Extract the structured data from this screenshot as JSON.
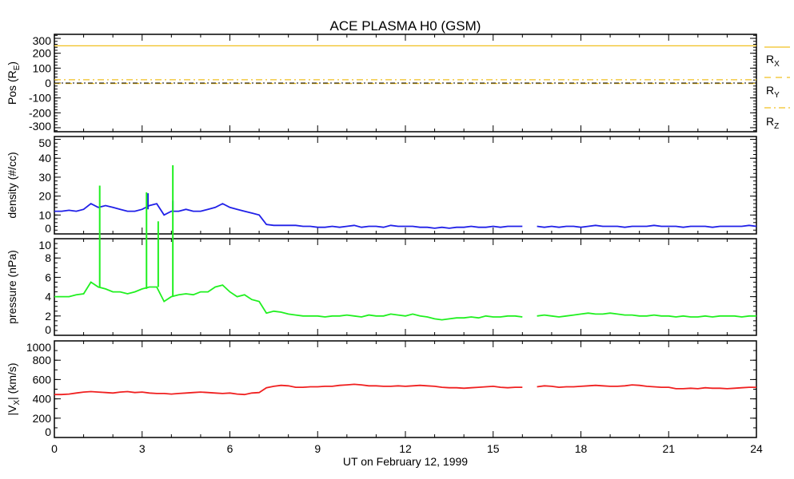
{
  "chart_data": {
    "type": "line",
    "title": "ACE PLASMA H0 (GSM)",
    "xlabel": "UT on February 12, 1999",
    "xlim": [
      0,
      24
    ],
    "xticks": [
      "0",
      "3",
      "6",
      "9",
      "12",
      "15",
      "18",
      "21",
      "24"
    ],
    "x_step_hours": 0.25,
    "panels": [
      {
        "id": "pos",
        "ylabel": {
          "main": "Pos (R",
          "sub": "E",
          "end": ")"
        },
        "ylim": [
          -327,
          327
        ],
        "yticks": [
          "-300",
          "-200",
          "-100",
          "0",
          "100",
          "200",
          "300"
        ],
        "ytick_values": [
          -300,
          -200,
          -100,
          0,
          100,
          200,
          300
        ],
        "minor_step": 20,
        "series": [
          {
            "name": "RX",
            "label_main": "R",
            "label_sub": "X",
            "color": "#f0c020",
            "style": "solid",
            "constant": 250
          },
          {
            "name": "RY",
            "label_main": "R",
            "label_sub": "Y",
            "color": "#f0c020",
            "style": "dashed",
            "constant": -3
          },
          {
            "name": "RZ",
            "label_main": "R",
            "label_sub": "Z",
            "color": "#f0c020",
            "style": "dashdot",
            "constant": 22
          }
        ]
      },
      {
        "id": "density",
        "ylabel": {
          "main": "density (#/cc)",
          "sub": "",
          "end": ""
        },
        "ylim": [
          0,
          51.5
        ],
        "yticks": [
          "0",
          "10",
          "20",
          "30",
          "40",
          "50"
        ],
        "ytick_values": [
          0,
          10,
          20,
          30,
          40,
          50
        ],
        "minor_step": 2,
        "series": [
          {
            "name": "density",
            "color": "#2020e8",
            "values": [
              12,
              12,
              12.5,
              12,
              13,
              16,
              14,
              15,
              14,
              13,
              12,
              12,
              13,
              15,
              16,
              10,
              12,
              12,
              13,
              12,
              12,
              13,
              14,
              16,
              14,
              13,
              12,
              11,
              10,
              5,
              4.5,
              4.5,
              4.5,
              4.5,
              4,
              4,
              3.5,
              3.5,
              4,
              3.5,
              4,
              4.5,
              3.5,
              4,
              4,
              3.5,
              4.5,
              4,
              4,
              4,
              3.5,
              3.5,
              3,
              3.5,
              3,
              3.5,
              3.5,
              4,
              3.5,
              3.5,
              4,
              3.5,
              4,
              4,
              4,
              null,
              4,
              3.5,
              4,
              3.5,
              4,
              4,
              3.5,
              4,
              4.5,
              4,
              4,
              4,
              3.5,
              4,
              4,
              4,
              4.5,
              4,
              4,
              4,
              3.5,
              4,
              4,
              4,
              3.5,
              4,
              4,
              4,
              4,
              4.5,
              4
            ],
            "spikes": [
              {
                "t": 3.2,
                "value": 21.5
              },
              {
                "t": 4.05,
                "value": 17.5
              }
            ]
          }
        ]
      },
      {
        "id": "pressure",
        "ylabel": {
          "main": "pressure (nPa)",
          "sub": "",
          "end": ""
        },
        "ylim": [
          0,
          10
        ],
        "yticks": [
          "0",
          "2",
          "4",
          "6",
          "8",
          "10"
        ],
        "ytick_values": [
          0,
          2,
          4,
          6,
          8,
          10
        ],
        "minor_step": 0.5,
        "series": [
          {
            "name": "pressure",
            "color": "#20f020",
            "values": [
              4,
              4,
              4,
              4.2,
              4.3,
              5.5,
              5,
              4.8,
              4.5,
              4.5,
              4.3,
              4.5,
              4.8,
              5,
              5,
              3.5,
              4,
              4.2,
              4.3,
              4.2,
              4.5,
              4.5,
              5,
              5.2,
              4.5,
              4,
              4.2,
              3.7,
              3.5,
              2.3,
              2.5,
              2.4,
              2.2,
              2.1,
              2,
              2,
              2,
              1.9,
              2,
              2,
              2.1,
              2,
              1.9,
              2.1,
              2,
              2,
              2.2,
              2.1,
              2,
              2.2,
              2,
              1.9,
              1.7,
              1.6,
              1.7,
              1.8,
              1.8,
              1.9,
              1.8,
              2,
              1.9,
              1.9,
              2,
              2,
              1.9,
              null,
              2,
              2.1,
              2,
              1.9,
              2,
              2.1,
              2.2,
              2.3,
              2.2,
              2.2,
              2.3,
              2.2,
              2.1,
              2.1,
              2,
              2,
              2.1,
              2,
              2,
              1.9,
              2,
              1.9,
              1.9,
              2,
              1.9,
              2,
              2,
              2,
              1.9,
              2,
              2
            ],
            "spikes": [
              {
                "t": 1.55,
                "value": 15.5
              },
              {
                "t": 3.15,
                "value": 14.8
              },
              {
                "t": 3.55,
                "value": 11.8
              },
              {
                "t": 4.05,
                "value": 17.6
              }
            ]
          }
        ]
      },
      {
        "id": "vx",
        "ylabel": {
          "main": "|V",
          "sub": "X",
          "end": "| (km/s)"
        },
        "ylim": [
          0,
          1000
        ],
        "yticks": [
          "0",
          "200",
          "400",
          "600",
          "800",
          "1000"
        ],
        "ytick_values": [
          0,
          200,
          400,
          600,
          800,
          1000
        ],
        "minor_step": 100,
        "series": [
          {
            "name": "|Vx|",
            "color": "#f02020",
            "values": [
              445,
              445,
              450,
              460,
              470,
              475,
              470,
              465,
              460,
              470,
              475,
              465,
              470,
              460,
              455,
              455,
              450,
              455,
              460,
              465,
              470,
              465,
              460,
              455,
              460,
              450,
              445,
              460,
              465,
              515,
              530,
              540,
              535,
              520,
              520,
              525,
              525,
              530,
              530,
              540,
              545,
              550,
              545,
              535,
              535,
              530,
              530,
              535,
              530,
              535,
              540,
              535,
              530,
              520,
              515,
              515,
              510,
              515,
              520,
              525,
              530,
              520,
              515,
              520,
              520,
              null,
              525,
              535,
              530,
              520,
              525,
              525,
              530,
              535,
              540,
              535,
              530,
              530,
              535,
              545,
              540,
              530,
              525,
              520,
              520,
              505,
              505,
              510,
              505,
              515,
              510,
              510,
              505,
              510,
              515,
              520,
              520
            ],
            "spikes": []
          }
        ]
      }
    ]
  }
}
